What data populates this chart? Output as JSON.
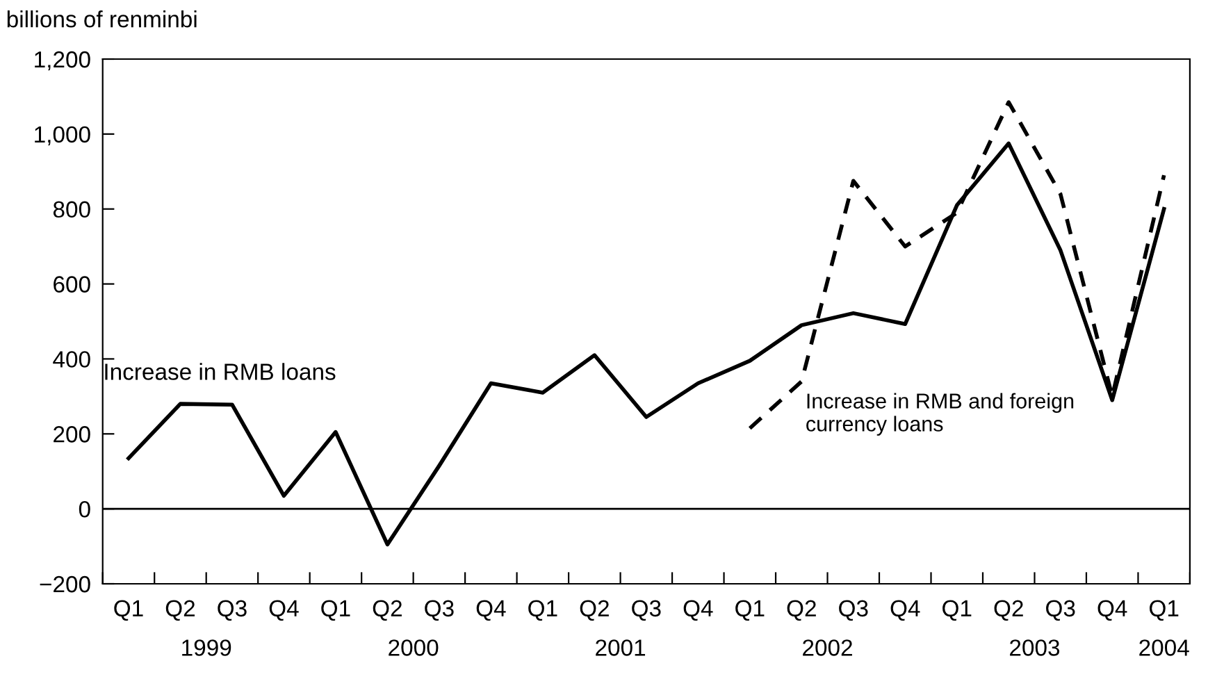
{
  "chart_data": {
    "type": "line",
    "ylabel": "billions of renminbi",
    "categories": [
      "Q1",
      "Q2",
      "Q3",
      "Q4",
      "Q1",
      "Q2",
      "Q3",
      "Q4",
      "Q1",
      "Q2",
      "Q3",
      "Q4",
      "Q1",
      "Q2",
      "Q3",
      "Q4",
      "Q1",
      "Q2",
      "Q3",
      "Q4",
      "Q1"
    ],
    "series": [
      {
        "name": "Increase in RMB loans",
        "color": "#000000",
        "line_style": "solid",
        "values": [
          135,
          280,
          278,
          35,
          205,
          -95,
          115,
          335,
          310,
          410,
          245,
          335,
          395,
          490,
          522,
          493,
          810,
          975,
          690,
          290,
          800
        ]
      },
      {
        "name": "Increase in RMB and foreign currency loans",
        "color": "#000000",
        "line_style": "dashed",
        "values": [
          null,
          null,
          null,
          null,
          null,
          null,
          null,
          null,
          null,
          null,
          null,
          null,
          215,
          340,
          875,
          700,
          790,
          1085,
          840,
          300,
          890
        ]
      }
    ],
    "annotations": [
      "1999",
      "2000",
      "2001",
      "2002",
      "2003",
      "2004"
    ],
    "ylim": [
      -200,
      1200
    ],
    "yticks": [
      {
        "value": -200,
        "label": "−200"
      },
      0,
      200,
      400,
      600,
      800,
      {
        "value": 1000,
        "label": "1,000"
      },
      {
        "value": 1200,
        "label": "1,200"
      }
    ],
    "ref_lines": [
      {
        "axis": "y",
        "value": 0,
        "color": "#000000"
      }
    ],
    "grid": false,
    "legend": false
  }
}
